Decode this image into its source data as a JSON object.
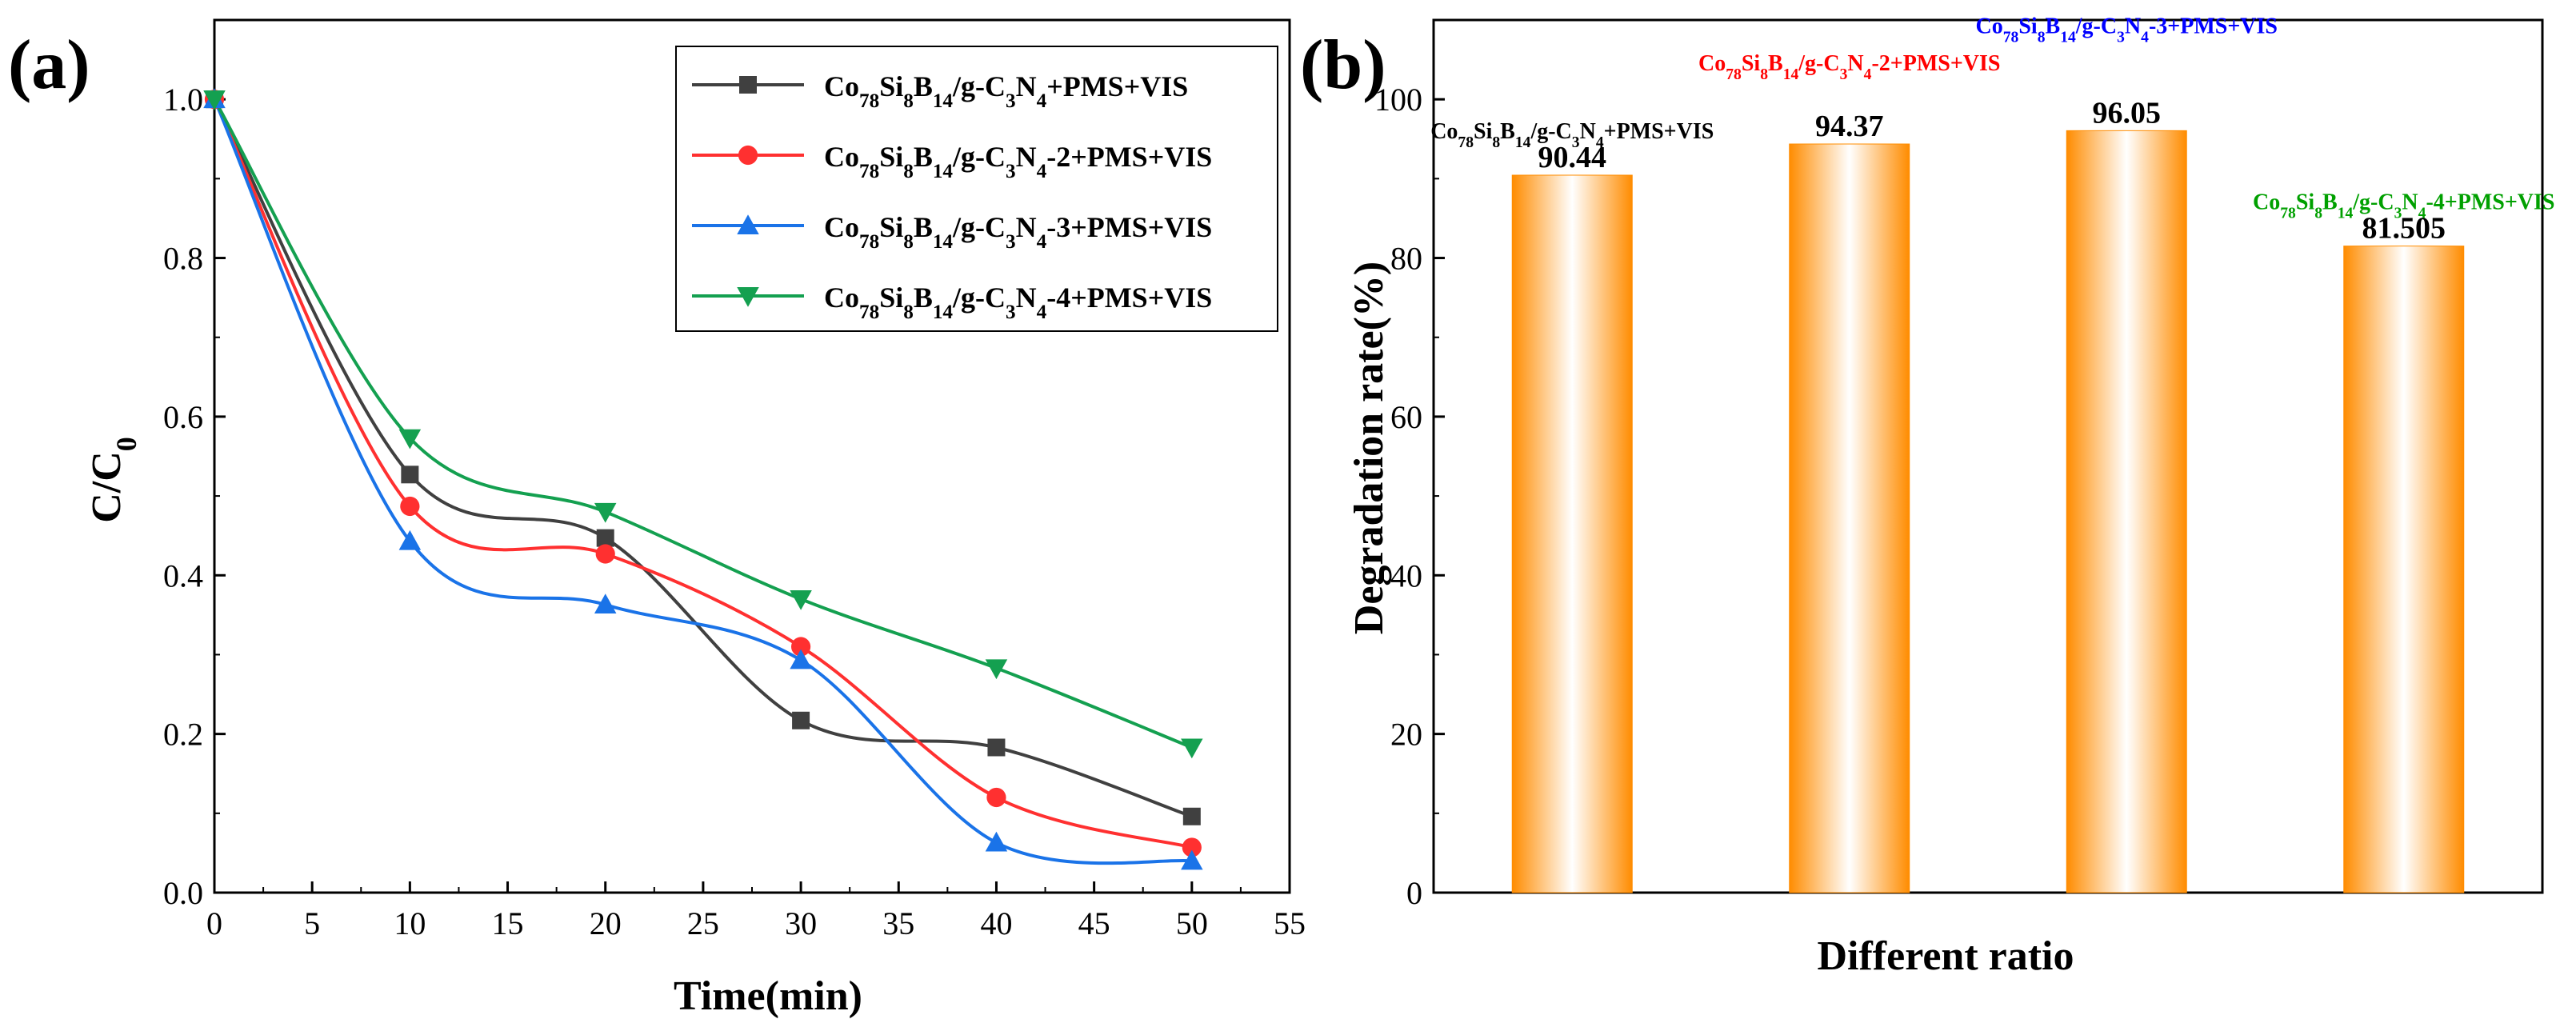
{
  "colors": {
    "black_series": "#404040",
    "red_series": "#ff3030",
    "blue_series": "#1a73e8",
    "green_series": "#14a050",
    "bar_orange": "#ff8c00",
    "label_black": "#000000",
    "label_red": "#ff0000",
    "label_blue": "#0000ff",
    "label_green": "#00a000"
  },
  "chart_data": [
    {
      "panel_label": "(a)",
      "type": "line",
      "xlabel": "Time(min)",
      "ylabel": "C/C",
      "ylabel_sub": "0",
      "xlim": [
        0,
        55
      ],
      "ylim": [
        0,
        1.1
      ],
      "xticks": [
        0,
        5,
        10,
        15,
        20,
        25,
        30,
        35,
        40,
        45,
        50,
        55
      ],
      "yticks": [
        0.0,
        0.2,
        0.4,
        0.6,
        0.8,
        1.0
      ],
      "xtick_labels": [
        "0",
        "5",
        "10",
        "15",
        "20",
        "25",
        "30",
        "35",
        "40",
        "45",
        "50",
        "55"
      ],
      "ytick_labels": [
        "0.0",
        "0.2",
        "0.4",
        "0.6",
        "0.8",
        "1.0"
      ],
      "grid": false,
      "legend_position": "top-right",
      "x": [
        0,
        10,
        20,
        30,
        40,
        50
      ],
      "series": [
        {
          "name": "Co78Si8B14/g-C3N4+PMS+VIS",
          "parts": [
            [
              "Co",
              ""
            ],
            [
              "78",
              "sub"
            ],
            [
              "Si",
              ""
            ],
            [
              "8",
              "sub"
            ],
            [
              "B",
              ""
            ],
            [
              "14",
              "sub"
            ],
            [
              "/g-C",
              ""
            ],
            [
              "3",
              "sub"
            ],
            [
              "N",
              ""
            ],
            [
              "4",
              "sub"
            ],
            [
              "+PMS+VIS",
              ""
            ]
          ],
          "marker": "square",
          "color_key": "black_series",
          "values": [
            1.0,
            0.527,
            0.447,
            0.217,
            0.183,
            0.096
          ]
        },
        {
          "name": "Co78Si8B14/g-C3N4-2+PMS+VIS",
          "parts": [
            [
              "Co",
              ""
            ],
            [
              "78",
              "sub"
            ],
            [
              "Si",
              ""
            ],
            [
              "8",
              "sub"
            ],
            [
              "B",
              ""
            ],
            [
              "14",
              "sub"
            ],
            [
              "/g-C",
              ""
            ],
            [
              "3",
              "sub"
            ],
            [
              "N",
              ""
            ],
            [
              "4",
              "sub"
            ],
            [
              "-2+PMS+VIS",
              ""
            ]
          ],
          "marker": "circle",
          "color_key": "red_series",
          "values": [
            1.0,
            0.487,
            0.427,
            0.31,
            0.12,
            0.057
          ]
        },
        {
          "name": "Co78Si8B14/g-C3N4-3+PMS+VIS",
          "parts": [
            [
              "Co",
              ""
            ],
            [
              "78",
              "sub"
            ],
            [
              "Si",
              ""
            ],
            [
              "8",
              "sub"
            ],
            [
              "B",
              ""
            ],
            [
              "14",
              "sub"
            ],
            [
              "/g-C",
              ""
            ],
            [
              "3",
              "sub"
            ],
            [
              "N",
              ""
            ],
            [
              "4",
              "sub"
            ],
            [
              "-3+PMS+VIS",
              ""
            ]
          ],
          "marker": "triangle-up",
          "color_key": "blue_series",
          "values": [
            1.0,
            0.443,
            0.363,
            0.293,
            0.063,
            0.04
          ]
        },
        {
          "name": "Co78Si8B14/g-C3N4-4+PMS+VIS",
          "parts": [
            [
              "Co",
              ""
            ],
            [
              "78",
              "sub"
            ],
            [
              "Si",
              ""
            ],
            [
              "8",
              "sub"
            ],
            [
              "B",
              ""
            ],
            [
              "14",
              "sub"
            ],
            [
              "/g-C",
              ""
            ],
            [
              "3",
              "sub"
            ],
            [
              "N",
              ""
            ],
            [
              "4",
              "sub"
            ],
            [
              "-4+PMS+VIS",
              ""
            ]
          ],
          "marker": "triangle-down",
          "color_key": "green_series",
          "values": [
            1.0,
            0.573,
            0.48,
            0.37,
            0.283,
            0.183
          ]
        }
      ]
    },
    {
      "panel_label": "(b)",
      "type": "bar",
      "xlabel": "Different ratio",
      "ylabel": "Degradation rate(%)",
      "ylim": [
        0,
        110
      ],
      "yticks": [
        0,
        20,
        40,
        60,
        80,
        100
      ],
      "ytick_labels": [
        "0",
        "20",
        "40",
        "60",
        "80",
        "100"
      ],
      "grid": false,
      "bar_fill": "gradient orange-white-orange",
      "bars": [
        {
          "name": "Co78Si8B14/g-C3N4+PMS+VIS",
          "parts": [
            [
              "Co",
              ""
            ],
            [
              "78",
              "sub"
            ],
            [
              "Si",
              ""
            ],
            [
              "8",
              "sub"
            ],
            [
              "B",
              ""
            ],
            [
              "14",
              "sub"
            ],
            [
              "/g-C",
              ""
            ],
            [
              "3",
              "sub"
            ],
            [
              "N",
              ""
            ],
            [
              "4",
              "sub"
            ],
            [
              "+PMS+VIS",
              ""
            ]
          ],
          "value": 90.44,
          "value_label": "90.44",
          "name_color_key": "label_black"
        },
        {
          "name": "Co78Si8B14/g-C3N4-2+PMS+VIS",
          "parts": [
            [
              "Co",
              ""
            ],
            [
              "78",
              "sub"
            ],
            [
              "Si",
              ""
            ],
            [
              "8",
              "sub"
            ],
            [
              "B",
              ""
            ],
            [
              "14",
              "sub"
            ],
            [
              "/g-C",
              ""
            ],
            [
              "3",
              "sub"
            ],
            [
              "N",
              ""
            ],
            [
              "4",
              "sub"
            ],
            [
              "-2+PMS+VIS",
              ""
            ]
          ],
          "value": 94.37,
          "value_label": "94.37",
          "name_color_key": "label_red"
        },
        {
          "name": "Co78Si8B14/g-C3N4-3+PMS+VIS",
          "parts": [
            [
              "Co",
              ""
            ],
            [
              "78",
              "sub"
            ],
            [
              "Si",
              ""
            ],
            [
              "8",
              "sub"
            ],
            [
              "B",
              ""
            ],
            [
              "14",
              "sub"
            ],
            [
              "/g-C",
              ""
            ],
            [
              "3",
              "sub"
            ],
            [
              "N",
              ""
            ],
            [
              "4",
              "sub"
            ],
            [
              "-3+PMS+VIS",
              ""
            ]
          ],
          "value": 96.05,
          "value_label": "96.05",
          "name_color_key": "label_blue"
        },
        {
          "name": "Co78Si8B14/g-C3N4-4+PMS+VIS",
          "parts": [
            [
              "Co",
              ""
            ],
            [
              "78",
              "sub"
            ],
            [
              "Si",
              ""
            ],
            [
              "8",
              "sub"
            ],
            [
              "B",
              ""
            ],
            [
              "14",
              "sub"
            ],
            [
              "/g-C",
              ""
            ],
            [
              "3",
              "sub"
            ],
            [
              "N",
              ""
            ],
            [
              "4",
              "sub"
            ],
            [
              "-4+PMS+VIS",
              ""
            ]
          ],
          "value": 81.505,
          "value_label": "81.505",
          "name_color_key": "label_green"
        }
      ]
    }
  ]
}
